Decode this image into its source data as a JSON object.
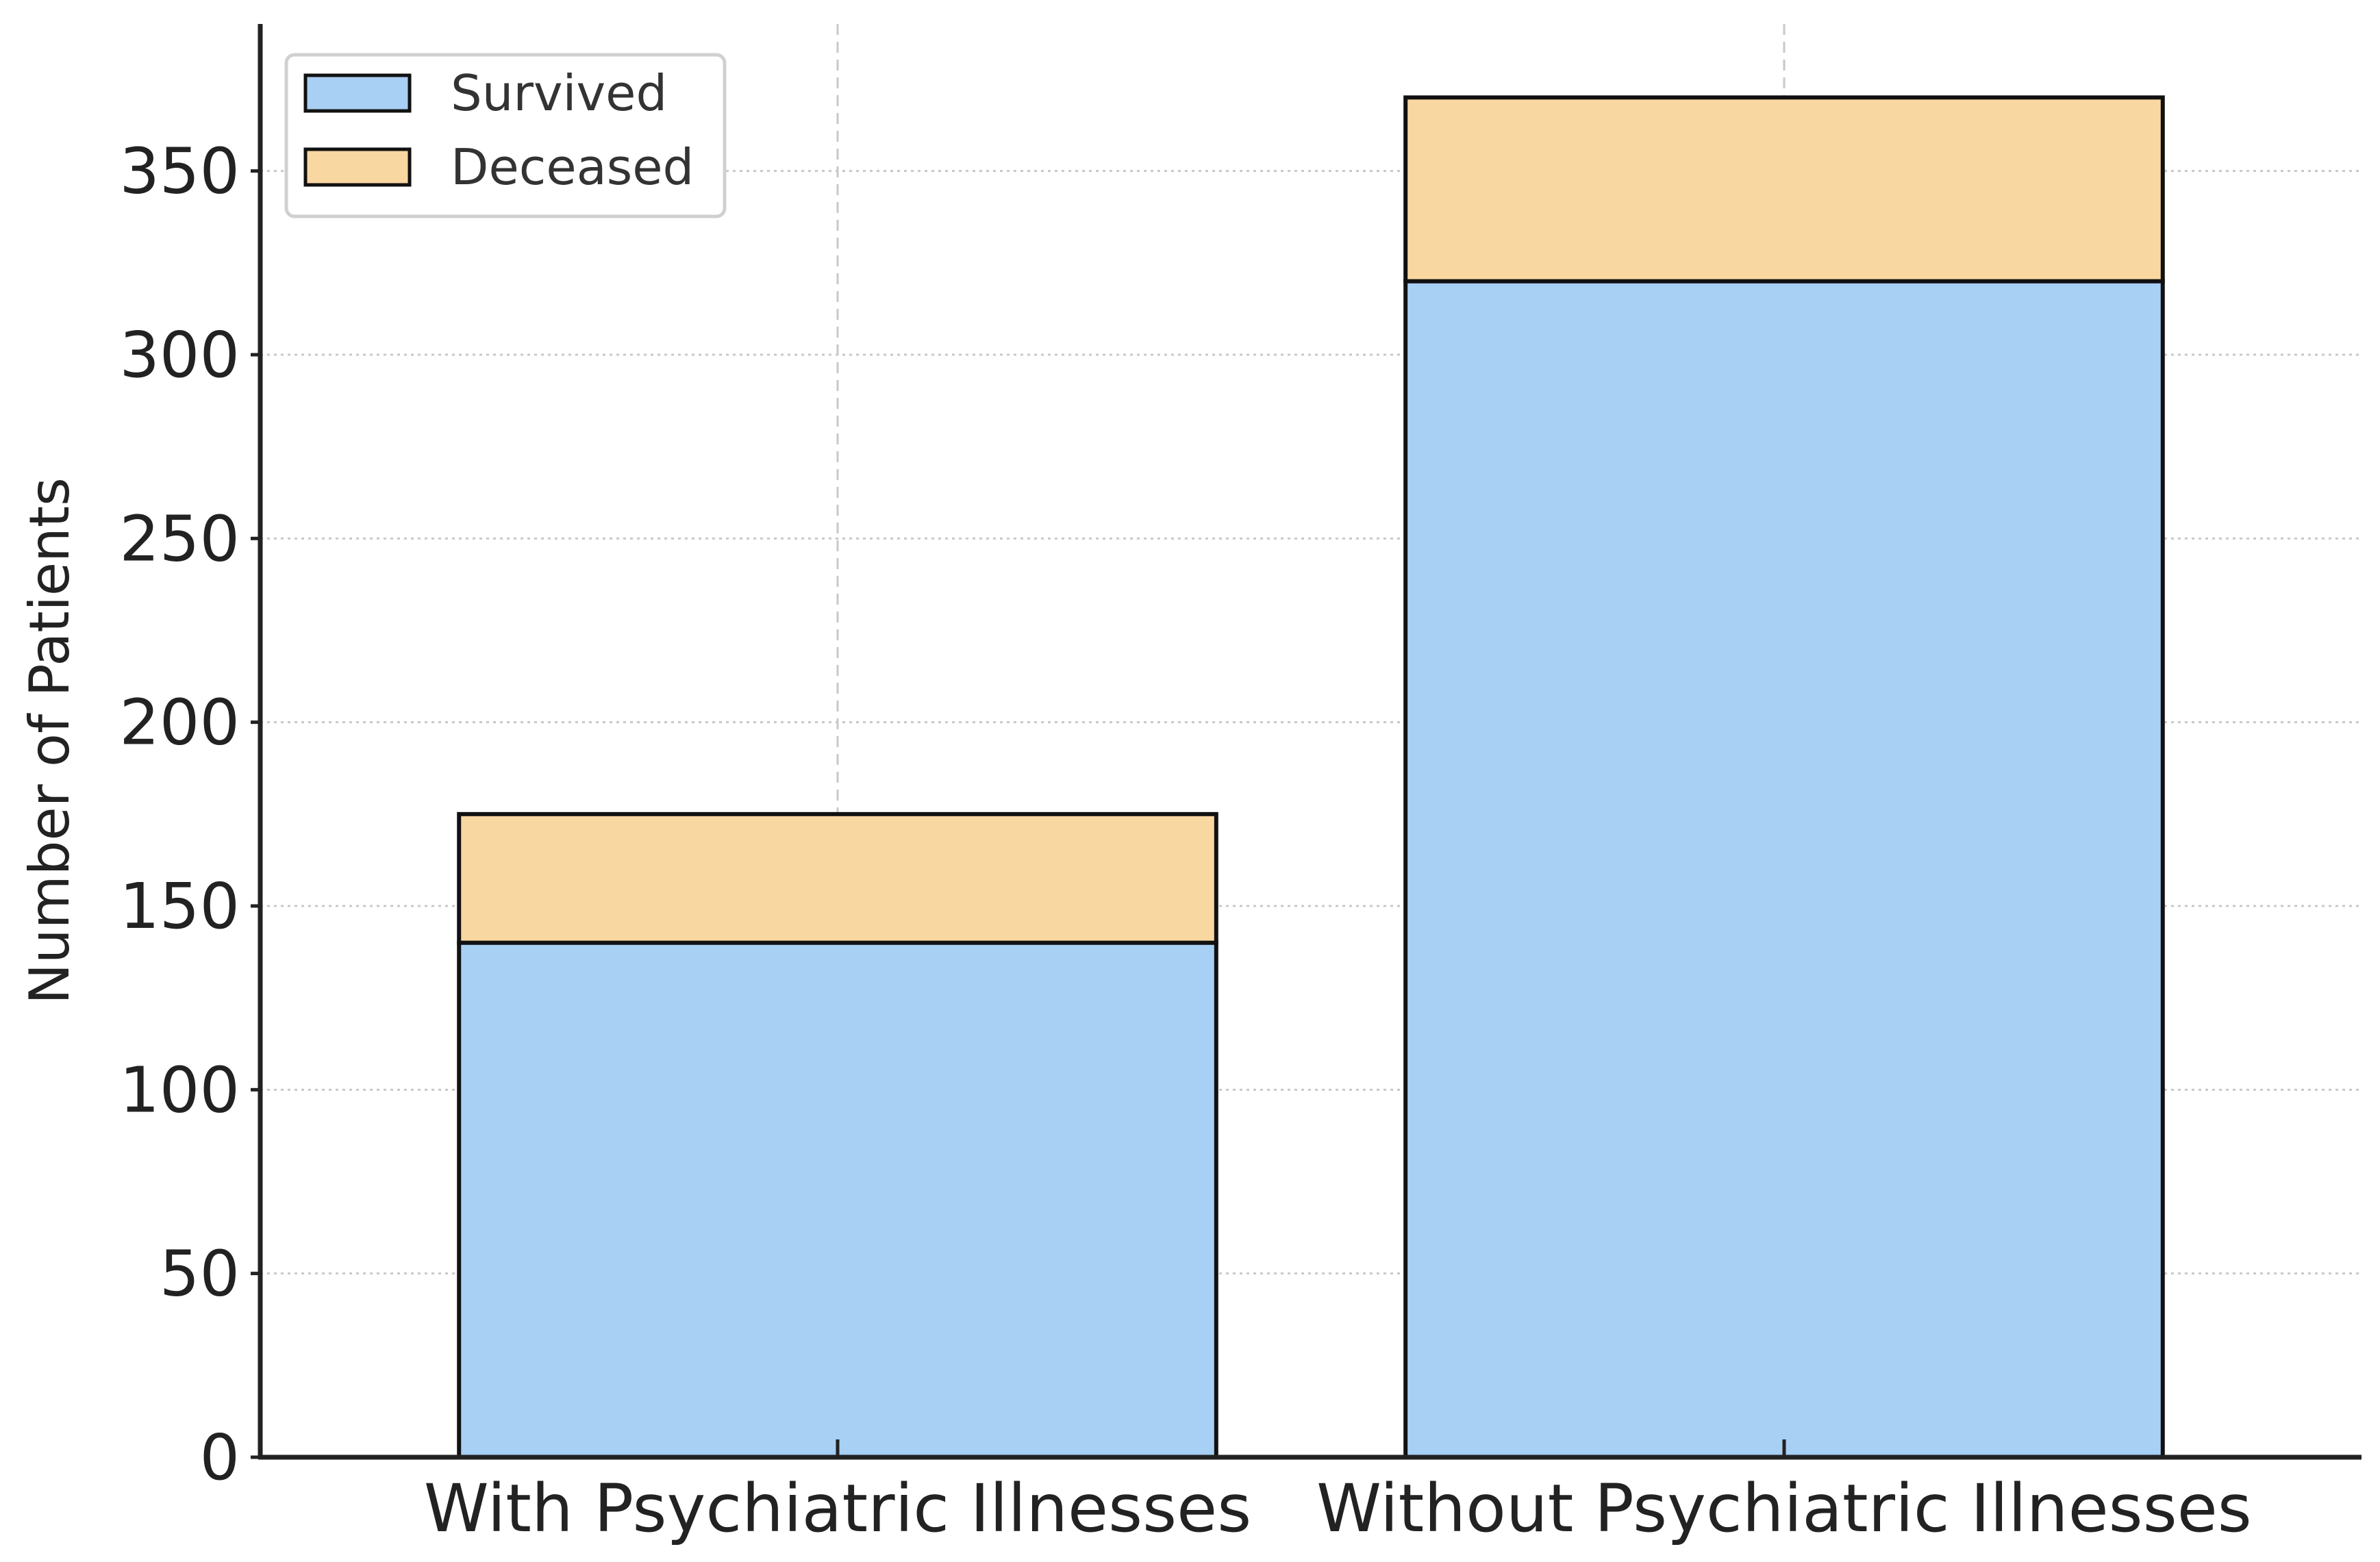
{
  "chart_data": {
    "type": "bar",
    "stacked": true,
    "categories": [
      "With Psychiatric Illnesses",
      "Without Psychiatric Illnesses"
    ],
    "series": [
      {
        "name": "Survived",
        "values": [
          140,
          320
        ],
        "color": "#a8cff4"
      },
      {
        "name": "Deceased",
        "values": [
          35,
          50
        ],
        "color": "#f9d7a1"
      }
    ],
    "title": "",
    "xlabel": "",
    "ylabel": "Number of Patients",
    "ylim": [
      0,
      390
    ],
    "yticks": [
      0,
      50,
      100,
      150,
      200,
      250,
      300,
      350
    ],
    "grid": true,
    "legend_position": "top-left"
  }
}
